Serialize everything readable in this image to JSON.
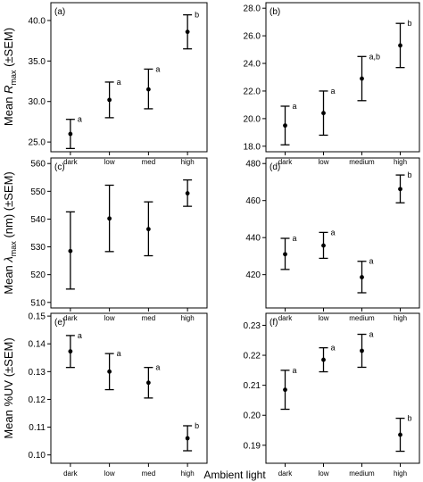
{
  "figure": {
    "xlabel": "Ambient light",
    "row_ylabels": [
      {
        "prefix": "Mean ",
        "symbol": "R",
        "sub": "max",
        "suffix": " (±SEM)"
      },
      {
        "prefix": "Mean ",
        "symbol": "λ",
        "sub": "max",
        "suffix": " (nm) (±SEM)"
      },
      {
        "prefix": "Mean ",
        "symbol": "",
        "sub": "",
        "suffix": "%UV (±SEM)"
      }
    ]
  },
  "chart_data": [
    {
      "type": "scatter",
      "panel": "(a)",
      "error_bars": "±SEM",
      "categories": [
        "dark",
        "low",
        "med",
        "high"
      ],
      "values": [
        26.0,
        30.2,
        31.5,
        38.6
      ],
      "err_low": [
        24.2,
        28.0,
        29.1,
        36.5
      ],
      "err_high": [
        27.8,
        32.4,
        34.0,
        40.7
      ],
      "letters": [
        "a",
        "a",
        "a",
        "b"
      ],
      "ylim": [
        23.8,
        42.2
      ],
      "yticks": [
        25.0,
        30.0,
        35.0,
        40.0
      ],
      "ytick_labels": [
        "25.0",
        "30.0",
        "35.0",
        "40.0"
      ]
    },
    {
      "type": "scatter",
      "panel": "(b)",
      "error_bars": "±SEM",
      "categories": [
        "dark",
        "low",
        "medium",
        "high"
      ],
      "values": [
        19.5,
        20.4,
        22.9,
        25.3
      ],
      "err_low": [
        18.1,
        18.8,
        21.3,
        23.7
      ],
      "err_high": [
        20.9,
        22.0,
        24.5,
        26.9
      ],
      "letters": [
        "a",
        "a",
        "a,b",
        "b"
      ],
      "ylim": [
        17.6,
        28.4
      ],
      "yticks": [
        18.0,
        20.0,
        22.0,
        24.0,
        26.0,
        28.0
      ],
      "ytick_labels": [
        "18.0",
        "20.0",
        "22.0",
        "24.0",
        "26.0",
        "28.0"
      ]
    },
    {
      "type": "scatter",
      "panel": "(c)",
      "error_bars": "±SEM",
      "categories": [
        "dark",
        "low",
        "med",
        "high"
      ],
      "values": [
        528.5,
        540.2,
        536.4,
        549.3
      ],
      "err_low": [
        514.8,
        528.3,
        526.8,
        544.6
      ],
      "err_high": [
        542.6,
        552.2,
        546.2,
        554.1
      ],
      "letters": [],
      "ylim": [
        508.0,
        562.0
      ],
      "yticks": [
        510,
        520,
        530,
        540,
        550,
        560
      ],
      "ytick_labels": [
        "510",
        "520",
        "530",
        "540",
        "550",
        "560"
      ]
    },
    {
      "type": "scatter",
      "panel": "(d)",
      "error_bars": "±SEM",
      "categories": [
        "dark",
        "low",
        "medium",
        "high"
      ],
      "values": [
        431.0,
        435.7,
        418.6,
        466.2
      ],
      "err_low": [
        422.8,
        428.8,
        410.2,
        458.8
      ],
      "err_high": [
        439.6,
        442.8,
        427.2,
        473.8
      ],
      "letters": [
        "a",
        "a",
        "a",
        "b"
      ],
      "ylim": [
        402.0,
        483.0
      ],
      "yticks": [
        420,
        440,
        460,
        480
      ],
      "ytick_labels": [
        "420",
        "440",
        "460",
        "480"
      ]
    },
    {
      "type": "scatter",
      "panel": "(e)",
      "error_bars": "±SEM",
      "categories": [
        "dark",
        "low",
        "med",
        "high"
      ],
      "values": [
        0.1373,
        0.13,
        0.126,
        0.106
      ],
      "err_low": [
        0.1315,
        0.1235,
        0.1205,
        0.1015
      ],
      "err_high": [
        0.143,
        0.1365,
        0.1315,
        0.1105
      ],
      "letters": [
        "a",
        "a",
        "a",
        "b"
      ],
      "ylim": [
        0.097,
        0.151
      ],
      "yticks": [
        0.1,
        0.11,
        0.12,
        0.13,
        0.14,
        0.15
      ],
      "ytick_labels": [
        "0.10",
        "0.11",
        "0.12",
        "0.13",
        "0.14",
        "0.15"
      ]
    },
    {
      "type": "scatter",
      "panel": "(f)",
      "error_bars": "±SEM",
      "categories": [
        "dark",
        "low",
        "medium",
        "high"
      ],
      "values": [
        0.2085,
        0.2185,
        0.2215,
        0.1935
      ],
      "err_low": [
        0.202,
        0.2145,
        0.216,
        0.188
      ],
      "err_high": [
        0.215,
        0.2225,
        0.227,
        0.199
      ],
      "letters": [
        "a",
        "a",
        "a",
        "b"
      ],
      "ylim": [
        0.184,
        0.234
      ],
      "yticks": [
        0.19,
        0.2,
        0.21,
        0.22,
        0.23
      ],
      "ytick_labels": [
        "0.19",
        "0.20",
        "0.21",
        "0.22",
        "0.23"
      ]
    }
  ]
}
